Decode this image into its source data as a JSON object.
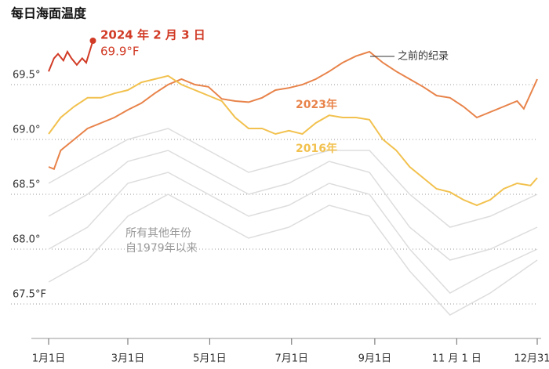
{
  "chart_data": {
    "type": "line",
    "title": "每日海面温度",
    "xlim": [
      1,
      365
    ],
    "ylim": [
      67.2,
      70.1
    ],
    "xticks": [
      {
        "value": 1,
        "label": "1月1日"
      },
      {
        "value": 60,
        "label": "3月1日"
      },
      {
        "value": 121,
        "label": "5月1日"
      },
      {
        "value": 182,
        "label": "7月1日"
      },
      {
        "value": 244,
        "label": "9月1日"
      },
      {
        "value": 305,
        "label": "11 月 1 日"
      },
      {
        "value": 365,
        "label": "12月31日"
      }
    ],
    "yticks": [
      {
        "value": 69.5,
        "label": "69.5°"
      },
      {
        "value": 69.0,
        "label": "69.0°"
      },
      {
        "value": 68.5,
        "label": "68.5°"
      },
      {
        "value": 68.0,
        "label": "68.0°"
      },
      {
        "value": 67.5,
        "label": "67.5°F"
      }
    ],
    "grid": true,
    "background_series": [
      {
        "color": "#dddddd",
        "x": [
          1,
          30,
          60,
          90,
          120,
          150,
          180,
          210,
          240,
          270,
          300,
          330,
          365
        ],
        "values": [
          68.3,
          68.5,
          68.8,
          68.9,
          68.7,
          68.5,
          68.6,
          68.8,
          68.7,
          68.2,
          67.9,
          68.0,
          68.2
        ]
      },
      {
        "color": "#dddddd",
        "x": [
          1,
          30,
          60,
          90,
          120,
          150,
          180,
          210,
          240,
          270,
          300,
          330,
          365
        ],
        "values": [
          68.0,
          68.2,
          68.6,
          68.7,
          68.5,
          68.3,
          68.4,
          68.6,
          68.5,
          68.0,
          67.6,
          67.8,
          68.0
        ]
      },
      {
        "color": "#dddddd",
        "x": [
          1,
          30,
          60,
          90,
          120,
          150,
          180,
          210,
          240,
          270,
          300,
          330,
          365
        ],
        "values": [
          68.6,
          68.8,
          69.0,
          69.1,
          68.9,
          68.7,
          68.8,
          68.9,
          68.9,
          68.5,
          68.2,
          68.3,
          68.5
        ]
      },
      {
        "color": "#dddddd",
        "x": [
          1,
          30,
          60,
          90,
          120,
          150,
          180,
          210,
          240,
          270,
          300,
          330,
          365
        ],
        "values": [
          67.7,
          67.9,
          68.3,
          68.5,
          68.3,
          68.1,
          68.2,
          68.4,
          68.3,
          67.8,
          67.4,
          67.6,
          67.9
        ]
      }
    ],
    "series": [
      {
        "name": "2023年",
        "color": "#e8834a",
        "x": [
          1,
          5,
          10,
          20,
          30,
          40,
          50,
          60,
          70,
          80,
          90,
          100,
          110,
          120,
          130,
          140,
          150,
          160,
          170,
          180,
          190,
          200,
          210,
          220,
          230,
          240,
          245,
          250,
          260,
          270,
          280,
          290,
          300,
          310,
          320,
          330,
          340,
          350,
          355,
          365
        ],
        "values": [
          68.75,
          68.73,
          68.9,
          69.0,
          69.1,
          69.15,
          69.2,
          69.27,
          69.33,
          69.42,
          69.5,
          69.55,
          69.5,
          69.48,
          69.37,
          69.35,
          69.34,
          69.38,
          69.45,
          69.47,
          69.5,
          69.55,
          69.62,
          69.7,
          69.76,
          69.8,
          69.75,
          69.7,
          69.62,
          69.55,
          69.48,
          69.4,
          69.38,
          69.3,
          69.2,
          69.25,
          69.3,
          69.35,
          69.28,
          69.55
        ]
      },
      {
        "name": "2016年",
        "color": "#f2c14e",
        "x": [
          1,
          10,
          20,
          30,
          40,
          50,
          60,
          70,
          80,
          90,
          100,
          110,
          120,
          130,
          140,
          150,
          160,
          170,
          180,
          190,
          200,
          210,
          220,
          230,
          240,
          250,
          260,
          270,
          280,
          290,
          300,
          310,
          320,
          330,
          340,
          350,
          360,
          365
        ],
        "values": [
          69.05,
          69.2,
          69.3,
          69.38,
          69.38,
          69.42,
          69.45,
          69.52,
          69.55,
          69.58,
          69.5,
          69.45,
          69.4,
          69.35,
          69.2,
          69.1,
          69.1,
          69.05,
          69.08,
          69.05,
          69.15,
          69.22,
          69.2,
          69.2,
          69.18,
          69.0,
          68.9,
          68.75,
          68.65,
          68.55,
          68.52,
          68.45,
          68.4,
          68.45,
          68.55,
          68.6,
          68.58,
          68.65
        ]
      },
      {
        "name": "2024 年 2 月 3 日",
        "color": "#d13b26",
        "x": [
          1,
          5,
          8,
          12,
          15,
          18,
          22,
          26,
          29,
          31,
          34
        ],
        "values": [
          69.62,
          69.74,
          69.78,
          69.72,
          69.8,
          69.74,
          69.68,
          69.74,
          69.7,
          69.78,
          69.9
        ],
        "value_labels": [
          null,
          null,
          null,
          null,
          null,
          null,
          null,
          null,
          null,
          null,
          "69.9°F"
        ]
      }
    ],
    "annotations": [
      "之前的纪录",
      "所有其他年份",
      "自1979年以来"
    ]
  }
}
